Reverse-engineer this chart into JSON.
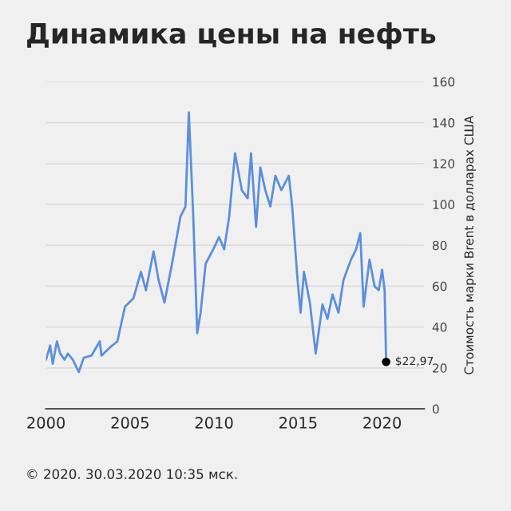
{
  "chart_data": {
    "type": "line",
    "title": "Динамика цены на нефть",
    "ylabel": "Стоимость марки Brent в долларах США",
    "annotations": [
      "© 2020. 30.03.2020 10:35 мск."
    ],
    "xlim": [
      2000,
      2022.5
    ],
    "xticks": [
      2000,
      2005,
      2010,
      2015,
      2020
    ],
    "ylim": [
      0,
      160
    ],
    "yticks": [
      0,
      20,
      40,
      60,
      80,
      100,
      120,
      140,
      160
    ],
    "grid": "y",
    "legend": false,
    "series": [
      {
        "color": "#5b8fdb",
        "x": [
          2000.0,
          2000.25,
          2000.4,
          2000.65,
          2000.85,
          2001.1,
          2001.3,
          2001.6,
          2001.95,
          2002.25,
          2002.7,
          2003.2,
          2003.3,
          2003.8,
          2004.25,
          2004.7,
          2005.2,
          2005.65,
          2005.95,
          2006.4,
          2006.7,
          2007.05,
          2007.5,
          2008.0,
          2008.3,
          2008.5,
          2008.75,
          2009.0,
          2009.2,
          2009.5,
          2009.95,
          2010.3,
          2010.6,
          2010.9,
          2011.25,
          2011.65,
          2012.0,
          2012.2,
          2012.5,
          2012.75,
          2013.05,
          2013.35,
          2013.65,
          2014.0,
          2014.45,
          2014.65,
          2014.95,
          2015.15,
          2015.35,
          2015.7,
          2016.05,
          2016.45,
          2016.75,
          2017.05,
          2017.4,
          2017.7,
          2018.15,
          2018.45,
          2018.7,
          2018.9,
          2019.25,
          2019.55,
          2019.8,
          2020.0,
          2020.15,
          2020.24
        ],
        "values": [
          24,
          31,
          22,
          33,
          27,
          24,
          27,
          24,
          18,
          25,
          26,
          33,
          26,
          30,
          33,
          50,
          54,
          67,
          58,
          77,
          63,
          52,
          71,
          94,
          99,
          145,
          97,
          37,
          47,
          71,
          78,
          84,
          78,
          94,
          125,
          107,
          103,
          125,
          89,
          118,
          107,
          99,
          114,
          107,
          114,
          99,
          65,
          47,
          67,
          52,
          27,
          51,
          44,
          56,
          47,
          63,
          73,
          78,
          86,
          50,
          73,
          60,
          58,
          68,
          58,
          22.97
        ]
      },
      {
        "type": "scatter",
        "color": "#000000",
        "x": [
          2020.24
        ],
        "values": [
          22.97
        ],
        "value_labels": [
          "$22,97"
        ]
      }
    ]
  }
}
